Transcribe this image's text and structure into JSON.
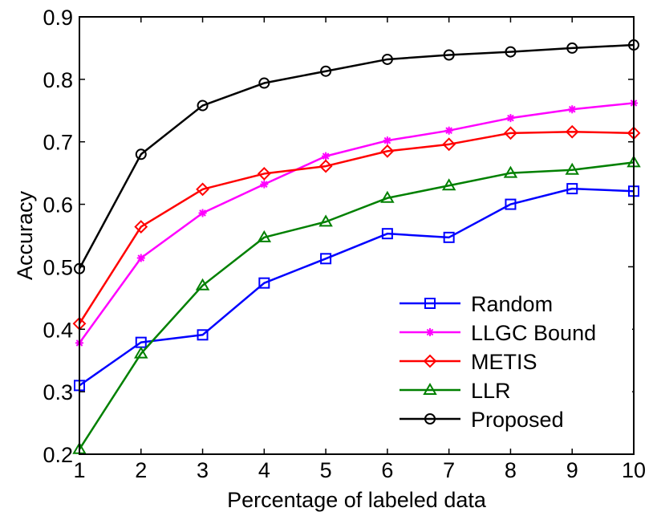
{
  "chart_data": {
    "type": "line",
    "title": "",
    "xlabel": "Percentage of labeled data",
    "ylabel": "Accuracy",
    "xlim": [
      1,
      10
    ],
    "ylim": [
      0.2,
      0.9
    ],
    "x": [
      1,
      2,
      3,
      4,
      5,
      6,
      7,
      8,
      9,
      10
    ],
    "xticks": [
      "1",
      "2",
      "3",
      "4",
      "5",
      "6",
      "7",
      "8",
      "9",
      "10"
    ],
    "yticks": [
      "0.2",
      "0.3",
      "0.4",
      "0.5",
      "0.6",
      "0.7",
      "0.8",
      "0.9"
    ],
    "grid": false,
    "legend_position": "bottom-right",
    "series": [
      {
        "name": "Random",
        "color": "#0000ff",
        "marker": "square",
        "values": [
          0.31,
          0.379,
          0.391,
          0.474,
          0.513,
          0.553,
          0.547,
          0.6,
          0.625,
          0.621
        ]
      },
      {
        "name": "LLGC Bound",
        "color": "#ff00ff",
        "marker": "asterisk",
        "values": [
          0.378,
          0.514,
          0.586,
          0.632,
          0.677,
          0.702,
          0.718,
          0.738,
          0.752,
          0.762
        ]
      },
      {
        "name": "METIS",
        "color": "#ff0000",
        "marker": "diamond",
        "values": [
          0.409,
          0.564,
          0.624,
          0.649,
          0.661,
          0.685,
          0.696,
          0.714,
          0.716,
          0.714
        ]
      },
      {
        "name": "LLR",
        "color": "#008000",
        "marker": "triangle",
        "values": [
          0.208,
          0.361,
          0.47,
          0.547,
          0.572,
          0.61,
          0.63,
          0.65,
          0.655,
          0.667
        ]
      },
      {
        "name": "Proposed",
        "color": "#000000",
        "marker": "circle",
        "values": [
          0.497,
          0.68,
          0.758,
          0.794,
          0.813,
          0.832,
          0.839,
          0.844,
          0.85,
          0.855
        ]
      }
    ]
  }
}
